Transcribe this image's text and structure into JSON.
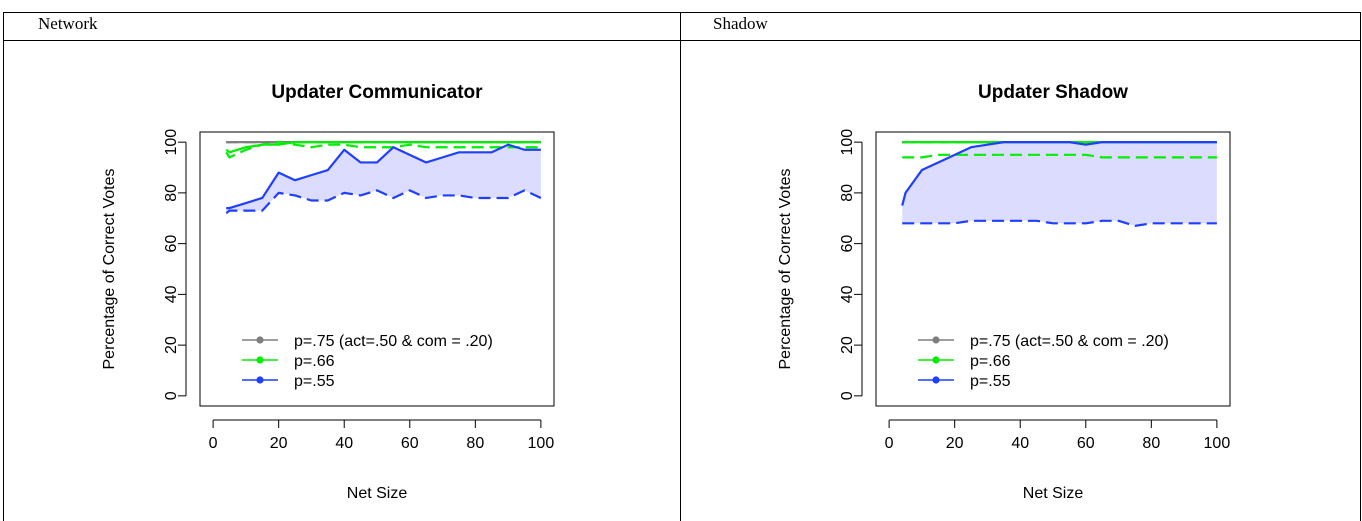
{
  "table": {
    "headers": [
      "Network",
      "Shadow"
    ]
  },
  "colors": {
    "gray": "#7f7f7f",
    "green": "#00ee00",
    "blue": "#1f3fff",
    "band": "#dcdcff"
  },
  "chart_data": [
    {
      "type": "line",
      "title": "Updater Communicator",
      "xlabel": "Net Size",
      "ylabel": "Percentage of Correct Votes",
      "xlim": [
        0,
        100
      ],
      "ylim": [
        0,
        100
      ],
      "xticks": [
        "0",
        "20",
        "40",
        "60",
        "80",
        "100"
      ],
      "yticks": [
        "0",
        "20",
        "40",
        "60",
        "80",
        "100"
      ],
      "grid": false,
      "legend_position": "bottom-right",
      "legend": [
        "p=.75 (act=.50 & com = .20)",
        "p=.66",
        "p=.55"
      ],
      "x": [
        4,
        5,
        10,
        15,
        20,
        25,
        30,
        35,
        40,
        45,
        50,
        55,
        60,
        65,
        70,
        75,
        80,
        85,
        90,
        95,
        100
      ],
      "series": [
        {
          "name": "p=.75 (act=.50 & com = .20)",
          "color": "#7f7f7f",
          "style": "solid",
          "values": [
            100,
            100,
            100,
            100,
            100,
            100,
            100,
            100,
            100,
            100,
            100,
            100,
            100,
            100,
            100,
            100,
            100,
            100,
            100,
            100,
            100
          ]
        },
        {
          "name": "p=.75 (act=.50 & com = .20)",
          "color": "#7f7f7f",
          "style": "dashed",
          "values": [
            100,
            100,
            100,
            100,
            100,
            100,
            100,
            100,
            100,
            100,
            100,
            100,
            100,
            100,
            100,
            100,
            100,
            100,
            100,
            100,
            100
          ]
        },
        {
          "name": "p=.66",
          "color": "#00ee00",
          "style": "solid",
          "values": [
            97,
            96,
            98,
            99,
            99,
            100,
            100,
            100,
            100,
            100,
            100,
            100,
            100,
            100,
            100,
            100,
            100,
            100,
            100,
            100,
            100
          ]
        },
        {
          "name": "p=.66",
          "color": "#00ee00",
          "style": "dashed",
          "values": [
            96,
            94,
            97,
            99,
            100,
            99,
            98,
            99,
            99,
            98,
            98,
            98,
            99,
            98,
            98,
            98,
            98,
            98,
            98,
            98,
            98
          ]
        },
        {
          "name": "p=.55",
          "color": "#1f3fff",
          "style": "solid",
          "values": [
            74,
            74,
            76,
            78,
            88,
            85,
            87,
            89,
            97,
            92,
            92,
            98,
            95,
            92,
            94,
            96,
            96,
            96,
            99,
            97,
            97
          ]
        },
        {
          "name": "p=.55",
          "color": "#1f3fff",
          "style": "dashed",
          "values": [
            72,
            73,
            73,
            73,
            80,
            79,
            77,
            77,
            80,
            79,
            81,
            78,
            81,
            78,
            79,
            79,
            78,
            78,
            78,
            81,
            78
          ]
        }
      ],
      "band": {
        "upper": "p=.55 solid",
        "lower": "p=.55 dashed"
      }
    },
    {
      "type": "line",
      "title": "Updater Shadow",
      "xlabel": "Net Size",
      "ylabel": "Percentage of Correct Votes",
      "xlim": [
        0,
        100
      ],
      "ylim": [
        0,
        100
      ],
      "xticks": [
        "0",
        "20",
        "40",
        "60",
        "80",
        "100"
      ],
      "yticks": [
        "0",
        "20",
        "40",
        "60",
        "80",
        "100"
      ],
      "grid": false,
      "legend_position": "bottom-right",
      "legend": [
        "p=.75 (act=.50 & com = .20)",
        "p=.66",
        "p=.55"
      ],
      "x": [
        4,
        5,
        10,
        15,
        20,
        25,
        30,
        35,
        40,
        45,
        50,
        55,
        60,
        65,
        70,
        75,
        80,
        85,
        90,
        95,
        100
      ],
      "series": [
        {
          "name": "p=.75 (act=.50 & com = .20)",
          "color": "#7f7f7f",
          "style": "solid",
          "values": [
            100,
            100,
            100,
            100,
            100,
            100,
            100,
            100,
            100,
            100,
            100,
            100,
            100,
            100,
            100,
            100,
            100,
            100,
            100,
            100,
            100
          ]
        },
        {
          "name": "p=.75 (act=.50 & com = .20)",
          "color": "#7f7f7f",
          "style": "dashed",
          "values": [
            100,
            100,
            100,
            100,
            100,
            100,
            100,
            100,
            100,
            100,
            100,
            100,
            100,
            100,
            100,
            100,
            100,
            100,
            100,
            100,
            100
          ]
        },
        {
          "name": "p=.66",
          "color": "#00ee00",
          "style": "solid",
          "values": [
            100,
            100,
            100,
            100,
            100,
            100,
            100,
            100,
            100,
            100,
            100,
            100,
            100,
            100,
            100,
            100,
            100,
            100,
            100,
            100,
            100
          ]
        },
        {
          "name": "p=.66",
          "color": "#00ee00",
          "style": "dashed",
          "values": [
            94,
            94,
            94,
            95,
            95,
            95,
            95,
            95,
            95,
            95,
            95,
            95,
            95,
            94,
            94,
            94,
            94,
            94,
            94,
            94,
            94
          ]
        },
        {
          "name": "p=.55",
          "color": "#1f3fff",
          "style": "solid",
          "values": [
            75,
            80,
            89,
            92,
            95,
            98,
            99,
            100,
            100,
            100,
            100,
            100,
            99,
            100,
            100,
            100,
            100,
            100,
            100,
            100,
            100
          ]
        },
        {
          "name": "p=.55",
          "color": "#1f3fff",
          "style": "dashed",
          "values": [
            68,
            68,
            68,
            68,
            68,
            69,
            69,
            69,
            69,
            69,
            68,
            68,
            68,
            69,
            69,
            67,
            68,
            68,
            68,
            68,
            68
          ]
        }
      ],
      "band": {
        "upper": "p=.55 solid",
        "lower": "p=.55 dashed"
      }
    }
  ]
}
